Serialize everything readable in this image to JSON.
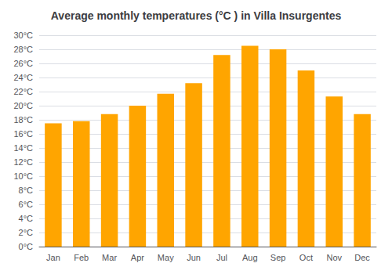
{
  "chart_data": {
    "type": "bar",
    "title": "Average monthly temperatures (°C ) in Villa Insurgentes",
    "categories": [
      "Jan",
      "Feb",
      "Mar",
      "Apr",
      "May",
      "Jun",
      "Jul",
      "Aug",
      "Sep",
      "Oct",
      "Nov",
      "Dec"
    ],
    "values": [
      17.5,
      17.8,
      18.8,
      20.0,
      21.7,
      23.2,
      27.2,
      28.5,
      28.0,
      25.0,
      21.3,
      18.8
    ],
    "color": "#FFA500",
    "ylim": [
      0,
      30
    ],
    "yticks": [
      {
        "value": 0,
        "label": "0°C"
      },
      {
        "value": 2,
        "label": "2°C"
      },
      {
        "value": 4,
        "label": "4°C"
      },
      {
        "value": 6,
        "label": "6°C"
      },
      {
        "value": 8,
        "label": "8°C"
      },
      {
        "value": 10,
        "label": "10°C"
      },
      {
        "value": 12,
        "label": "12°C"
      },
      {
        "value": 14,
        "label": "14°C"
      },
      {
        "value": 16,
        "label": "16°C"
      },
      {
        "value": 18,
        "label": "18°C"
      },
      {
        "value": 20,
        "label": "20°C"
      },
      {
        "value": 22,
        "label": "22°C"
      },
      {
        "value": 24,
        "label": "24°C"
      },
      {
        "value": 26,
        "label": "26°C"
      },
      {
        "value": 28,
        "label": "28°C"
      },
      {
        "value": 30,
        "label": "30°C"
      }
    ],
    "grid": true
  }
}
